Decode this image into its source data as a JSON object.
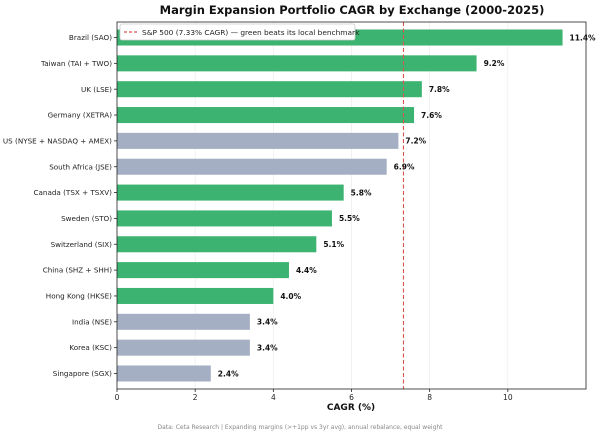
{
  "chart_data": {
    "type": "bar",
    "orientation": "horizontal",
    "title": "Margin Expansion Portfolio CAGR by Exchange (2000-2025)",
    "xlabel": "CAGR (%)",
    "ylabel": "",
    "xlim": [
      0,
      12
    ],
    "xticks": [
      0,
      2,
      4,
      6,
      8,
      10
    ],
    "grid": "x",
    "legend_position": "top-left",
    "categories": [
      "Brazil (SAO)",
      "Taiwan (TAI + TWO)",
      "UK (LSE)",
      "Germany (XETRA)",
      "US (NYSE + NASDAQ + AMEX)",
      "South Africa (JSE)",
      "Canada (TSX + TSXV)",
      "Sweden (STO)",
      "Switzerland (SIX)",
      "China (SHZ + SHH)",
      "Hong Kong (HKSE)",
      "India (NSE)",
      "Korea (KSC)",
      "Singapore (SGX)"
    ],
    "values": [
      11.4,
      9.2,
      7.8,
      7.6,
      7.2,
      6.9,
      5.8,
      5.5,
      5.1,
      4.4,
      4.0,
      3.4,
      3.4,
      2.4
    ],
    "labels": [
      "11.4%",
      "9.2%",
      "7.8%",
      "7.6%",
      "7.2%",
      "6.9%",
      "5.8%",
      "5.5%",
      "5.1%",
      "4.4%",
      "4.0%",
      "3.4%",
      "3.4%",
      "2.4%"
    ],
    "beats_benchmark": [
      true,
      true,
      true,
      true,
      false,
      false,
      true,
      true,
      true,
      true,
      true,
      false,
      false,
      false
    ],
    "reference_line": {
      "value": 7.33,
      "label": "S&P 500 (7.33% CAGR) — green beats its local benchmark"
    },
    "colors": {
      "beat": "#3cb371",
      "miss": "#a4afc3",
      "reference": "#d9534f",
      "grid": "#ebebeb"
    }
  },
  "footnote": "Data: Ceta Research | Expanding margins (>+1pp vs 3yr avg), annual rebalance, equal weight"
}
